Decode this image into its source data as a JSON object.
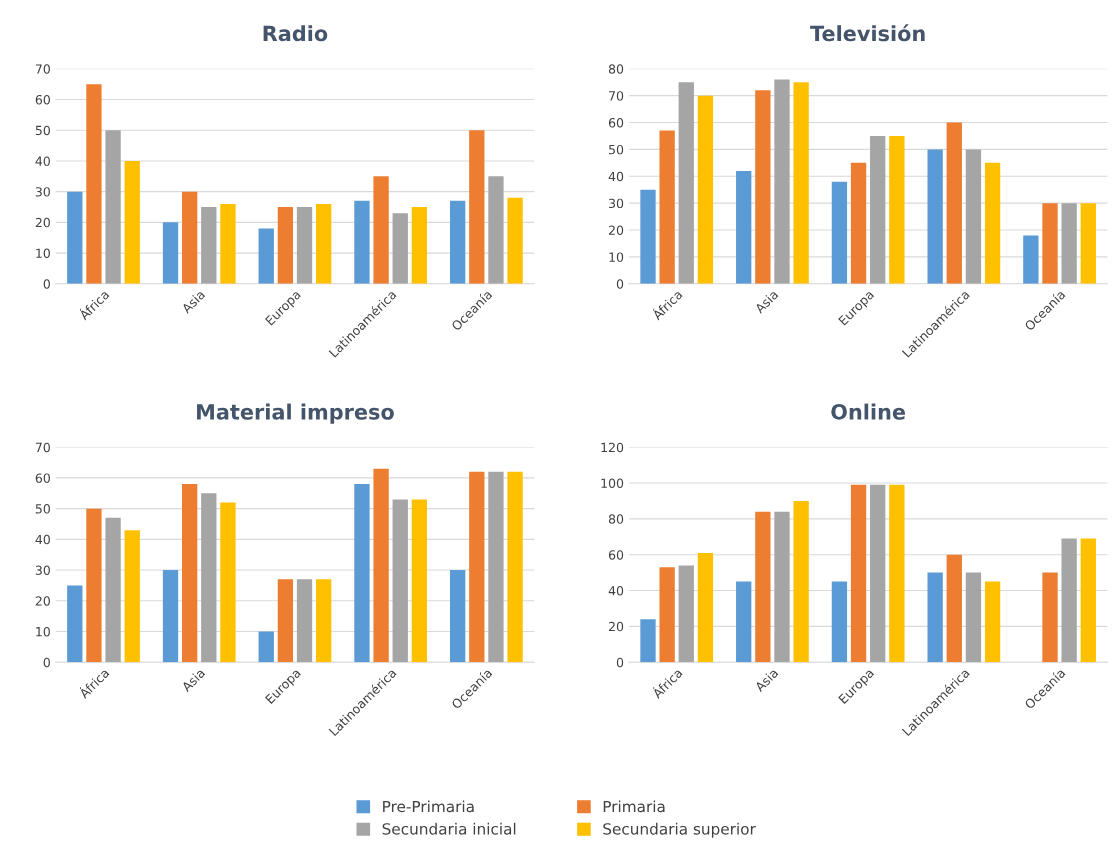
{
  "chart_data": [
    {
      "type": "bar",
      "title": "Radio",
      "categories": [
        "África",
        "Asia",
        "Europa",
        "Latinoamérica",
        "Oceanía"
      ],
      "ylim": [
        0,
        70
      ],
      "yticks": [
        0,
        10,
        20,
        30,
        40,
        50,
        60,
        70
      ],
      "grid": "y",
      "legend": "bottom",
      "series": [
        {
          "name": "Pre-Primaria",
          "color": "#5b9bd5",
          "values": [
            30,
            20,
            18,
            27,
            27
          ]
        },
        {
          "name": "Primaria",
          "color": "#ed7d31",
          "values": [
            65,
            30,
            25,
            35,
            50
          ]
        },
        {
          "name": "Secundaria inicial",
          "color": "#a5a5a5",
          "values": [
            50,
            25,
            25,
            23,
            35
          ]
        },
        {
          "name": "Secundaria superior",
          "color": "#ffc000",
          "values": [
            40,
            26,
            26,
            25,
            28
          ]
        }
      ]
    },
    {
      "type": "bar",
      "title": "Televisión",
      "categories": [
        "África",
        "Asia",
        "Europa",
        "Latinoamérica",
        "Oceanía"
      ],
      "ylim": [
        0,
        80
      ],
      "yticks": [
        0,
        10,
        20,
        30,
        40,
        50,
        60,
        70,
        80
      ],
      "grid": "y",
      "legend": false,
      "series": [
        {
          "color": "#5b9bd5",
          "values": [
            35,
            42,
            38,
            50,
            18
          ]
        },
        {
          "color": "#ed7d31",
          "values": [
            57,
            72,
            45,
            60,
            30
          ]
        },
        {
          "color": "#a5a5a5",
          "values": [
            75,
            76,
            55,
            50,
            30
          ]
        },
        {
          "color": "#ffc000",
          "values": [
            70,
            75,
            55,
            45,
            30
          ]
        }
      ]
    },
    {
      "type": "bar",
      "title": "Material impreso",
      "categories": [
        "África",
        "Asia",
        "Europa",
        "Latinoamérica",
        "Oceanía"
      ],
      "ylim": [
        0,
        70
      ],
      "yticks": [
        0,
        10,
        20,
        30,
        40,
        50,
        60,
        70
      ],
      "grid": "y",
      "legend": false,
      "series": [
        {
          "color": "#5b9bd5",
          "values": [
            25,
            30,
            10,
            58,
            30
          ]
        },
        {
          "color": "#ed7d31",
          "values": [
            50,
            58,
            27,
            63,
            62
          ]
        },
        {
          "color": "#a5a5a5",
          "values": [
            47,
            55,
            27,
            53,
            62
          ]
        },
        {
          "color": "#ffc000",
          "values": [
            43,
            52,
            27,
            53,
            62
          ]
        }
      ]
    },
    {
      "type": "bar",
      "title": "Online",
      "categories": [
        "África",
        "Asia",
        "Europa",
        "Latinoamérica",
        "Oceanía"
      ],
      "ylim": [
        0,
        120
      ],
      "yticks": [
        0,
        20,
        40,
        60,
        80,
        100,
        120
      ],
      "grid": "y",
      "legend": false,
      "series": [
        {
          "color": "#5b9bd5",
          "values": [
            24,
            45,
            45,
            50,
            null
          ]
        },
        {
          "color": "#ed7d31",
          "values": [
            53,
            84,
            99,
            60,
            50
          ]
        },
        {
          "color": "#a5a5a5",
          "values": [
            54,
            84,
            99,
            50,
            69
          ]
        },
        {
          "color": "#ffc000",
          "values": [
            61,
            90,
            99,
            45,
            69
          ]
        }
      ]
    }
  ]
}
